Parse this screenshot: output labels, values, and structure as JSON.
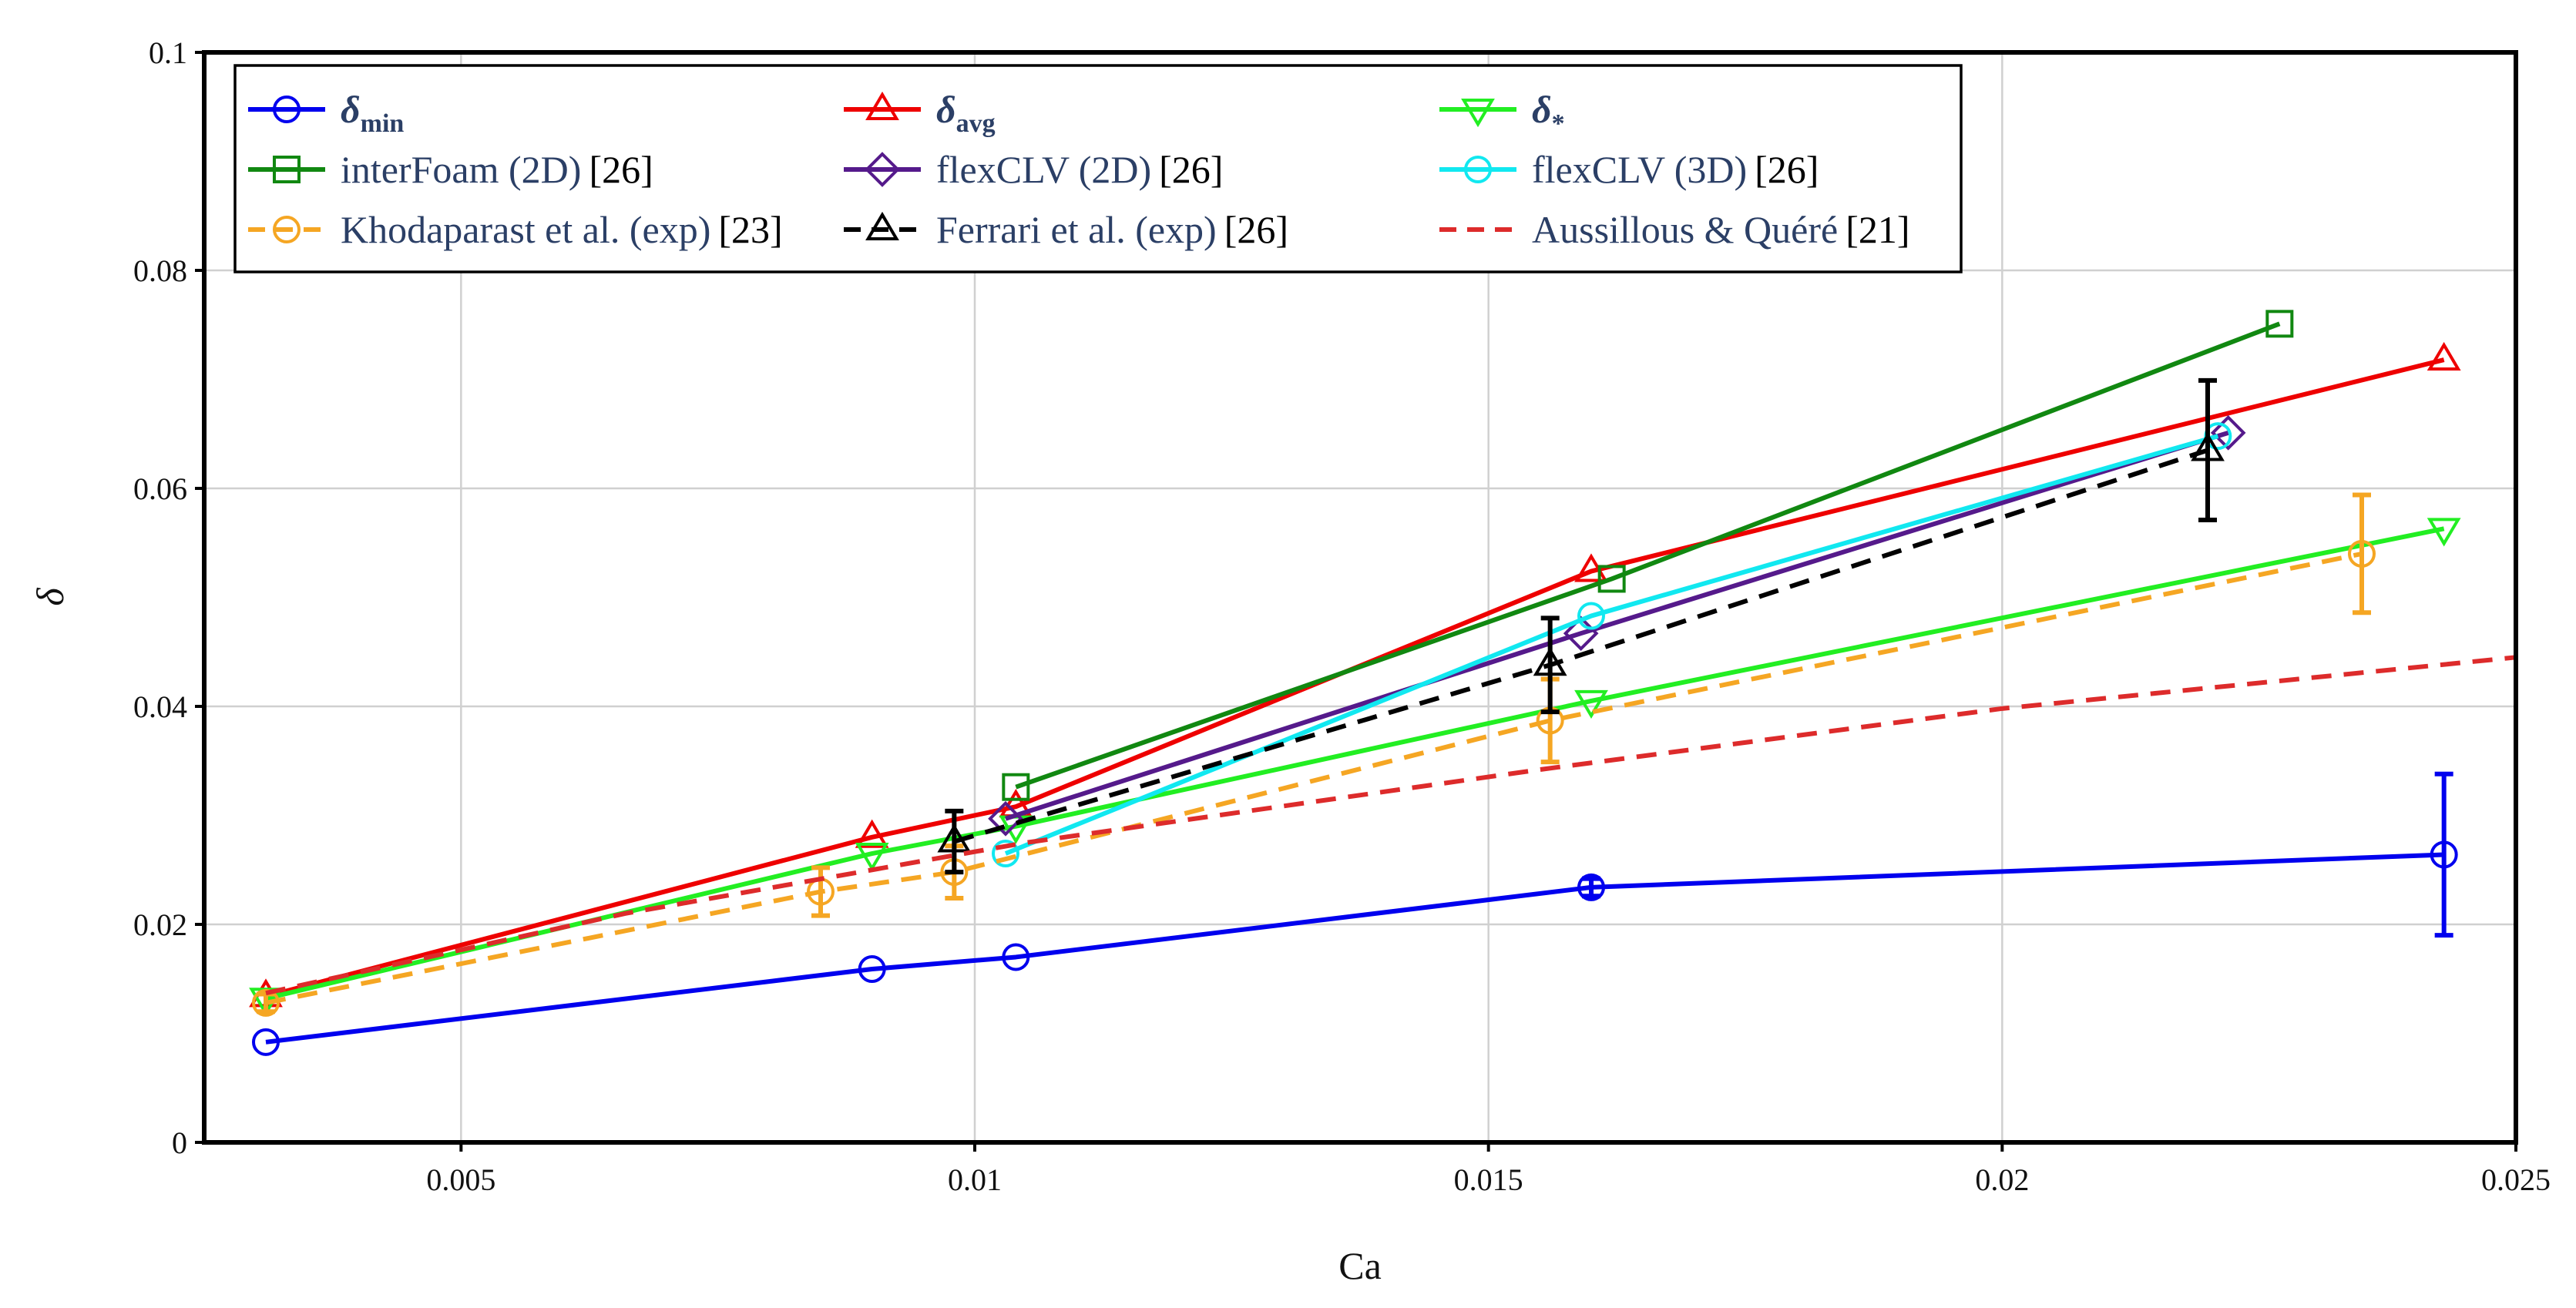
{
  "chart_data": {
    "type": "line",
    "title": "",
    "xlabel": "Ca",
    "ylabel": "δ",
    "xlim": [
      0.0025,
      0.025
    ],
    "ylim": [
      0,
      0.1
    ],
    "xticks": [
      0.005,
      0.01,
      0.015,
      0.02,
      0.025
    ],
    "xtick_labels": [
      "0.005",
      "0.01",
      "0.015",
      "0.02",
      "0.025"
    ],
    "yticks": [
      0,
      0.02,
      0.04,
      0.06,
      0.08,
      0.1
    ],
    "ytick_labels": [
      "0",
      "0.02",
      "0.04",
      "0.06",
      "0.08",
      "0.1"
    ],
    "grid": true,
    "legend_position": "top",
    "series": [
      {
        "name": "δmin",
        "label_main": "δ",
        "label_sub": "min",
        "ref": "",
        "color": "#0000ee",
        "marker": "circle",
        "dash": "solid",
        "x": [
          0.0031,
          0.009,
          0.0104,
          0.016,
          0.0243
        ],
        "y": [
          0.0092,
          0.0159,
          0.017,
          0.0234,
          0.0264
        ],
        "err": [
          0,
          0,
          0,
          0.0008,
          0.0074
        ]
      },
      {
        "name": "δavg",
        "label_main": "δ",
        "label_sub": "avg",
        "ref": "",
        "color": "#ee0000",
        "marker": "triangle-up",
        "dash": "solid",
        "x": [
          0.0031,
          0.009,
          0.0104,
          0.016,
          0.0243
        ],
        "y": [
          0.0134,
          0.028,
          0.0308,
          0.0524,
          0.0718
        ],
        "err": []
      },
      {
        "name": "δ*",
        "label_main": "δ",
        "label_sub": "*",
        "ref": "",
        "color": "#22ee22",
        "marker": "triangle-down",
        "dash": "solid",
        "x": [
          0.0031,
          0.009,
          0.0104,
          0.016,
          0.0243
        ],
        "y": [
          0.0132,
          0.0265,
          0.029,
          0.0405,
          0.0563
        ],
        "err": []
      },
      {
        "name": "interFoam (2D)",
        "label_main": "interFoam (2D)",
        "label_sub": "",
        "ref": "[26]",
        "color": "#118811",
        "marker": "square",
        "dash": "solid",
        "x": [
          0.0104,
          0.0162,
          0.0227
        ],
        "y": [
          0.0326,
          0.0517,
          0.0751
        ],
        "err": []
      },
      {
        "name": "flexCLV (2D)",
        "label_main": "flexCLV (2D)",
        "label_sub": "",
        "ref": "[26]",
        "color": "#551a8b",
        "marker": "diamond",
        "dash": "solid",
        "x": [
          0.0103,
          0.0159,
          0.0222
        ],
        "y": [
          0.0297,
          0.0467,
          0.0651
        ],
        "err": []
      },
      {
        "name": "flexCLV (3D)",
        "label_main": "flexCLV (3D)",
        "label_sub": "",
        "ref": "[26]",
        "color": "#11e8f0",
        "marker": "circle",
        "dash": "solid",
        "x": [
          0.0103,
          0.016,
          0.0221
        ],
        "y": [
          0.0265,
          0.0483,
          0.0648
        ],
        "err": []
      },
      {
        "name": "Khodaparast et al. (exp)",
        "label_main": "Khodaparast et al. (exp)",
        "label_sub": "",
        "ref": "[23]",
        "color": "#f5a623",
        "marker": "circle",
        "dash": "dashed",
        "x": [
          0.0031,
          0.0085,
          0.0098,
          0.0156,
          0.0235
        ],
        "y": [
          0.0128,
          0.023,
          0.0248,
          0.0387,
          0.054
        ],
        "err": [
          0.0008,
          0.0022,
          0.0024,
          0.0038,
          0.0054
        ]
      },
      {
        "name": "Ferrari et al. (exp)",
        "label_main": "Ferrari et al. (exp)",
        "label_sub": "",
        "ref": "[26]",
        "color": "#000000",
        "marker": "triangle-up",
        "dash": "dashed",
        "x": [
          0.0098,
          0.0156,
          0.022
        ],
        "y": [
          0.0276,
          0.0438,
          0.0635
        ],
        "err": [
          0.0028,
          0.0043,
          0.0064
        ]
      },
      {
        "name": "Aussillous & Quéré",
        "label_main": "Aussillous & Quéré",
        "label_sub": "",
        "ref": "[21]",
        "color": "#dd2b2b",
        "marker": "none",
        "dash": "dashed",
        "x": [
          0.0031,
          0.0066,
          0.0105,
          0.0155,
          0.02,
          0.025
        ],
        "y": [
          0.0137,
          0.021,
          0.0275,
          0.0342,
          0.0398,
          0.0445
        ],
        "err": []
      }
    ]
  }
}
